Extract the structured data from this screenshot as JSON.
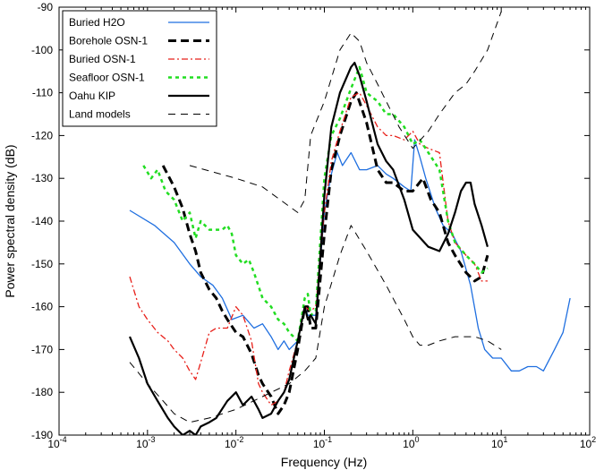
{
  "chart_data": {
    "type": "line",
    "title": "",
    "xlabel": "Frequency (Hz)",
    "ylabel": "Power spectral density (dB)",
    "x_scale": "log",
    "xlim": [
      0.0001,
      100
    ],
    "ylim": [
      -190,
      -90
    ],
    "x_ticks": [
      {
        "value": 0.0001,
        "base": "10",
        "exp": "-4"
      },
      {
        "value": 0.001,
        "base": "10",
        "exp": "-3"
      },
      {
        "value": 0.01,
        "base": "10",
        "exp": "-2"
      },
      {
        "value": 0.1,
        "base": "10",
        "exp": "-1"
      },
      {
        "value": 1,
        "base": "10",
        "exp": "0"
      },
      {
        "value": 10,
        "base": "10",
        "exp": "1"
      },
      {
        "value": 100,
        "base": "10",
        "exp": "2"
      }
    ],
    "y_ticks": [
      -190,
      -180,
      -170,
      -160,
      -150,
      -140,
      -130,
      -120,
      -110,
      -100,
      -90
    ],
    "grid": false,
    "legend_position": "top-left",
    "series": [
      {
        "name": "Buried H2O",
        "color": "#1f6fe0",
        "dash": "solid",
        "width": 1.3,
        "x": [
          0.00063,
          0.0012,
          0.002,
          0.003,
          0.004,
          0.0055,
          0.007,
          0.009,
          0.012,
          0.016,
          0.02,
          0.025,
          0.03,
          0.035,
          0.04,
          0.05,
          0.06,
          0.065,
          0.08,
          0.1,
          0.12,
          0.14,
          0.16,
          0.2,
          0.25,
          0.3,
          0.4,
          0.5,
          0.6,
          0.8,
          0.95,
          1.05,
          1.2,
          1.4,
          1.8,
          2.2,
          2.8,
          3.5,
          4.5,
          5.5,
          6.5,
          8,
          10,
          13,
          16,
          20,
          25,
          30,
          40,
          50,
          60
        ],
        "y": [
          -137.5,
          -141,
          -145,
          -150,
          -153,
          -155,
          -158,
          -163,
          -162,
          -165,
          -164,
          -167,
          -170,
          -168,
          -170,
          -168,
          -160,
          -162,
          -162,
          -138,
          -129,
          -124,
          -127,
          -124,
          -128,
          -128,
          -127,
          -129,
          -130,
          -132,
          -133,
          -121,
          -125,
          -130,
          -137,
          -141,
          -143,
          -147,
          -155,
          -165,
          -170,
          -172,
          -172,
          -175,
          -175,
          -174,
          -174,
          -175,
          -170,
          -166,
          -158
        ]
      },
      {
        "name": "Borehole OSN-1",
        "color": "#000000",
        "dash": "heavy-dash",
        "width": 3,
        "x": [
          0.0015,
          0.002,
          0.0025,
          0.003,
          0.0035,
          0.004,
          0.005,
          0.006,
          0.007,
          0.008,
          0.01,
          0.012,
          0.015,
          0.018,
          0.02,
          0.025,
          0.03,
          0.035,
          0.04,
          0.05,
          0.06,
          0.065,
          0.07,
          0.08,
          0.1,
          0.12,
          0.15,
          0.2,
          0.23,
          0.3,
          0.4,
          0.5,
          0.6,
          0.8,
          1.0,
          1.3,
          1.6,
          2.0,
          2.5,
          3.0,
          4.0,
          5.0,
          6.0,
          7.0
        ],
        "y": [
          -127,
          -132,
          -137,
          -143,
          -147,
          -152,
          -156,
          -158,
          -161,
          -163,
          -166,
          -167,
          -171,
          -176,
          -178,
          -181,
          -185,
          -183,
          -180,
          -170,
          -160,
          -160,
          -165,
          -165,
          -143,
          -128,
          -120,
          -112,
          -110,
          -117,
          -128,
          -131,
          -131,
          -133,
          -133,
          -130,
          -135,
          -138,
          -145,
          -148,
          -152,
          -154,
          -153,
          -148
        ]
      },
      {
        "name": "Buried OSN-1",
        "color": "#e8201a",
        "dash": "dash-dot",
        "width": 1.3,
        "x": [
          0.00063,
          0.0008,
          0.001,
          0.0013,
          0.0017,
          0.002,
          0.0025,
          0.003,
          0.0035,
          0.004,
          0.005,
          0.006,
          0.008,
          0.01,
          0.012,
          0.015,
          0.018,
          0.02,
          0.025,
          0.03,
          0.035,
          0.04,
          0.05,
          0.06,
          0.07,
          0.08,
          0.1,
          0.12,
          0.15,
          0.2,
          0.25,
          0.3,
          0.4,
          0.5,
          0.6,
          0.8,
          1.0,
          1.2,
          1.5,
          2.0,
          2.5,
          3.0,
          4.0,
          5.0,
          6.0,
          7.0
        ],
        "y": [
          -153,
          -160,
          -163,
          -166,
          -168,
          -170,
          -172,
          -175,
          -177,
          -173,
          -166,
          -165,
          -165,
          -160,
          -162,
          -168,
          -178,
          -180,
          -183,
          -182,
          -180,
          -175,
          -168,
          -160,
          -161,
          -160,
          -138,
          -126,
          -119,
          -111,
          -110,
          -113,
          -118,
          -120,
          -120,
          -121,
          -119,
          -122,
          -123,
          -124,
          -140,
          -145,
          -148,
          -150,
          -154,
          -154
        ]
      },
      {
        "name": "Seafloor OSN-1",
        "color": "#22dd22",
        "dash": "dotted",
        "width": 2.5,
        "x": [
          0.0009,
          0.0011,
          0.0013,
          0.0016,
          0.002,
          0.0025,
          0.003,
          0.0035,
          0.004,
          0.005,
          0.006,
          0.007,
          0.008,
          0.009,
          0.01,
          0.012,
          0.014,
          0.016,
          0.02,
          0.025,
          0.03,
          0.035,
          0.04,
          0.05,
          0.06,
          0.065,
          0.07,
          0.08,
          0.1,
          0.12,
          0.15,
          0.2,
          0.25,
          0.3,
          0.4,
          0.5,
          0.6,
          0.8,
          1.0,
          1.2,
          1.5,
          2.0,
          2.5,
          3.0,
          4.0,
          5.0,
          6.0,
          7.0
        ],
        "y": [
          -127,
          -130,
          -128,
          -133,
          -135,
          -140,
          -138,
          -144,
          -140,
          -142,
          -142,
          -142,
          -141,
          -143,
          -148,
          -150,
          -149,
          -152,
          -158,
          -160,
          -163,
          -164,
          -166,
          -168,
          -158,
          -157,
          -162,
          -161,
          -130,
          -120,
          -116,
          -109,
          -104,
          -110,
          -112,
          -115,
          -115,
          -118,
          -122,
          -121,
          -124,
          -128,
          -140,
          -145,
          -148,
          -150,
          -152,
          -151
        ]
      },
      {
        "name": "Oahu KIP",
        "color": "#000000",
        "dash": "solid",
        "width": 2.2,
        "x": [
          0.00063,
          0.0008,
          0.001,
          0.0013,
          0.0017,
          0.002,
          0.0025,
          0.003,
          0.0035,
          0.004,
          0.005,
          0.006,
          0.008,
          0.01,
          0.012,
          0.015,
          0.018,
          0.02,
          0.025,
          0.03,
          0.035,
          0.04,
          0.05,
          0.06,
          0.065,
          0.07,
          0.08,
          0.1,
          0.12,
          0.15,
          0.2,
          0.22,
          0.25,
          0.3,
          0.4,
          0.5,
          0.6,
          0.8,
          1.0,
          1.5,
          2.0,
          2.5,
          3.0,
          3.5,
          4.0,
          4.5,
          5.0,
          6.0,
          7.0
        ],
        "y": [
          -167,
          -172,
          -178,
          -182,
          -186,
          -188,
          -190,
          -189,
          -190,
          -188,
          -187,
          -186,
          -182,
          -180,
          -183,
          -181,
          -184,
          -186,
          -185,
          -182,
          -180,
          -177,
          -168,
          -160,
          -163,
          -162,
          -164,
          -134,
          -118,
          -110,
          -104,
          -103,
          -106,
          -112,
          -122,
          -126,
          -128,
          -135,
          -142,
          -146,
          -147,
          -143,
          -138,
          -133,
          -131,
          -131,
          -136,
          -141,
          -146
        ]
      },
      {
        "name": "Land models",
        "color": "#000000",
        "dash": "thin-dash",
        "width": 1,
        "pieces": [
          {
            "x": [
              0.003,
              0.01,
              0.02,
              0.05,
              0.06,
              0.07,
              0.1,
              0.15,
              0.2,
              0.25,
              0.3,
              0.4,
              0.5,
              0.7,
              1.0,
              1.5,
              2.0,
              3.0,
              4.0,
              5.0,
              7.0,
              10.0
            ],
            "y": [
              -127,
              -130,
              -132,
              -138,
              -135,
              -120,
              -112,
              -100,
              -96,
              -98,
              -103,
              -108,
              -112,
              -118,
              -123,
              -119,
              -115,
              -110,
              -108,
              -105,
              -100,
              -91
            ]
          },
          {
            "x": [
              0.00063,
              0.001,
              0.0015,
              0.002,
              0.003,
              0.005,
              0.01,
              0.02,
              0.04,
              0.06,
              0.08,
              0.1,
              0.15,
              0.2,
              0.3,
              0.5,
              0.8,
              1.0,
              1.2,
              1.5,
              2.0,
              3.0,
              4.0,
              5.0,
              7.0,
              10.0
            ],
            "y": [
              -173,
              -178,
              -182,
              -185,
              -187,
              -186,
              -184,
              -181,
              -178,
              -175,
              -172,
              -160,
              -148,
              -141,
              -147,
              -155,
              -163,
              -167,
              -169,
              -169,
              -168,
              -167,
              -167,
              -167,
              -168,
              -170
            ]
          }
        ]
      }
    ]
  }
}
